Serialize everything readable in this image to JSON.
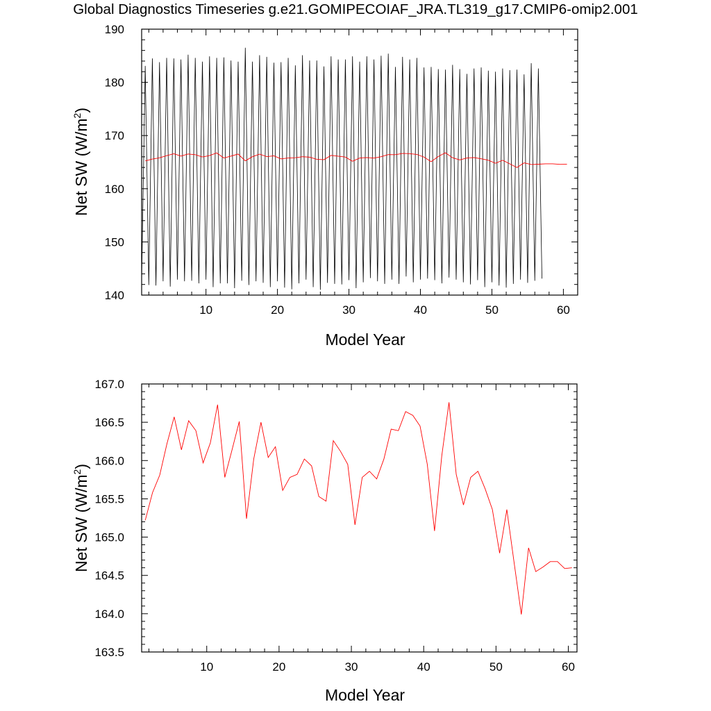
{
  "page": {
    "title": "Global Diagnostics Timeseries g.e21.GOMIPECOIAF_JRA.TL319_g17.CMIP6-omip2.001"
  },
  "chart_data": [
    {
      "type": "line",
      "xlabel": "Model Year",
      "ylabel_main": "Net SW (W/m",
      "ylabel_sup": "2",
      "ylabel_close": ")",
      "xlim": [
        1,
        62
      ],
      "ylim": [
        140,
        190
      ],
      "xticks": [
        10,
        20,
        30,
        40,
        50,
        60
      ],
      "yticks": [
        140,
        150,
        160,
        170,
        180,
        190
      ],
      "ytick_labels": [
        "140",
        "150",
        "160",
        "170",
        "180",
        "190"
      ],
      "grid": false,
      "monthly_series": {
        "color": "#000000",
        "x_start": 1.0,
        "x_step": 0.5,
        "values": [
          142.7,
          183.1,
          141.9,
          184.5,
          141.8,
          183.8,
          142.6,
          184.6,
          141.6,
          184.5,
          142.9,
          184.3,
          142.6,
          185.2,
          142.7,
          184.6,
          142.2,
          183.9,
          142.9,
          184.9,
          141.5,
          184.6,
          142.2,
          184.7,
          142.2,
          184.1,
          141.3,
          183.9,
          142.7,
          186.5,
          141.9,
          183.9,
          142.6,
          185.1,
          142.3,
          184.8,
          141.5,
          183.7,
          142.6,
          183.8,
          141.4,
          184.6,
          141.1,
          183.2,
          142.2,
          185.1,
          142.9,
          184.1,
          141.5,
          184.1,
          141.0,
          183.0,
          142.3,
          184.9,
          142.1,
          184.3,
          142.0,
          184.3,
          142.8,
          184.9,
          141.3,
          183.9,
          142.4,
          184.9,
          143.2,
          184.3,
          142.6,
          185.0,
          142.1,
          185.4,
          142.9,
          182.9,
          142.1,
          184.8,
          143.5,
          184.3,
          142.4,
          184.6,
          142.9,
          182.8,
          143.1,
          182.9,
          142.8,
          182.5,
          142.2,
          182.4,
          143.3,
          183.3,
          142.9,
          182.5,
          142.4,
          181.6,
          142.0,
          182.6,
          142.8,
          182.8,
          141.5,
          182.2,
          142.4,
          182.0,
          141.8,
          182.6,
          141.4,
          182.3,
          142.1,
          182.4,
          142.9,
          181.5,
          142.3,
          183.6,
          142.7,
          182.6,
          143.1
        ]
      },
      "annual_series": {
        "color": "#ff0000",
        "x_start": 1.5,
        "values": [
          165.22,
          165.58,
          165.81,
          166.22,
          166.57,
          166.14,
          166.52,
          166.39,
          165.97,
          166.23,
          166.73,
          165.78,
          166.14,
          166.51,
          165.24,
          166.02,
          166.5,
          166.04,
          166.18,
          165.61,
          165.78,
          165.82,
          166.02,
          165.93,
          165.53,
          165.47,
          166.26,
          166.12,
          165.95,
          165.16,
          165.78,
          165.86,
          165.76,
          166.02,
          166.41,
          166.39,
          166.64,
          166.59,
          166.45,
          165.95,
          165.08,
          166.06,
          166.76,
          165.82,
          165.42,
          165.78,
          165.86,
          165.63,
          165.36,
          164.79,
          165.36,
          164.67,
          163.99,
          164.86,
          164.55,
          164.61,
          164.68,
          164.68,
          164.59,
          164.6
        ]
      }
    },
    {
      "type": "line",
      "xlabel": "Model Year",
      "ylabel_main": "Net SW (W/m",
      "ylabel_sup": "2",
      "ylabel_close": ")",
      "xlim": [
        1,
        61.2
      ],
      "ylim": [
        163.5,
        167.0
      ],
      "xticks": [
        10,
        20,
        30,
        40,
        50,
        60
      ],
      "yticks": [
        163.5,
        164.0,
        164.5,
        165.0,
        165.5,
        166.0,
        166.5,
        167.0
      ],
      "ytick_labels": [
        "163.5",
        "164.0",
        "164.5",
        "165.0",
        "165.5",
        "166.0",
        "166.5",
        "167.0"
      ],
      "grid": false,
      "annual_series_ref": "chart_data.0.annual_series"
    }
  ]
}
